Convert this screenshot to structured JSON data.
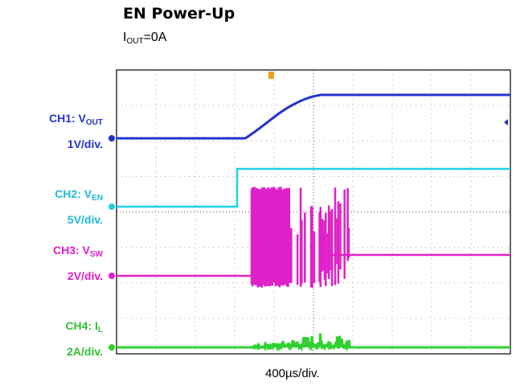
{
  "header": {
    "title": "EN Power-Up",
    "subtitle": {
      "main": "I",
      "sub": "OUT",
      "rest": "=0A"
    }
  },
  "channels": [
    {
      "name": "CH1: V",
      "sub": "OUT",
      "scale": "1V/div."
    },
    {
      "name": "CH2: V",
      "sub": "EN",
      "scale": "5V/div."
    },
    {
      "name": "CH3: V",
      "sub": "SW",
      "scale": "2V/div."
    },
    {
      "name": "CH4: I",
      "sub": "L",
      "scale": "2A/div."
    }
  ],
  "timebase": "400µs/div."
}
